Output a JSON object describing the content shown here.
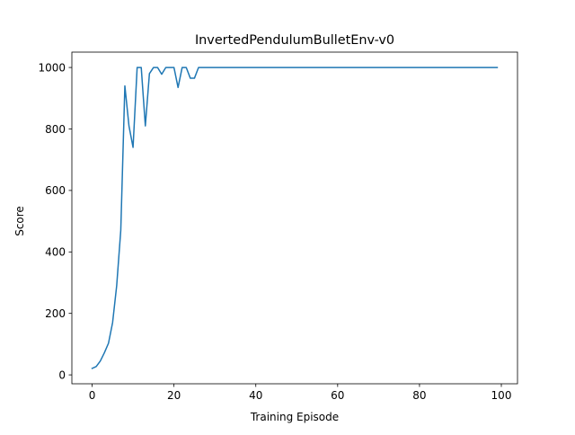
{
  "chart_data": {
    "type": "line",
    "title": "InvertedPendulumBulletEnv-v0",
    "xlabel": "Training Episode",
    "ylabel": "Score",
    "xlim": [
      -4.95,
      103.95
    ],
    "ylim": [
      -28.95,
      1049.95
    ],
    "xticks": [
      0,
      20,
      40,
      60,
      80,
      100
    ],
    "yticks": [
      0,
      200,
      400,
      600,
      800,
      1000
    ],
    "grid": false,
    "line_color": "#1f77b4",
    "series": [
      {
        "x": [
          0,
          1,
          2,
          3,
          4,
          5,
          6,
          7,
          8,
          9,
          10,
          11,
          12,
          13,
          14,
          15,
          16,
          17,
          18,
          19,
          20,
          21,
          22,
          23,
          24,
          25,
          26,
          27,
          28,
          29,
          30,
          31,
          32,
          33,
          34,
          35,
          36,
          37,
          38,
          39,
          40,
          41,
          42,
          43,
          44,
          45,
          46,
          47,
          48,
          49,
          50,
          51,
          52,
          53,
          54,
          55,
          56,
          57,
          58,
          59,
          60,
          61,
          62,
          63,
          64,
          65,
          66,
          67,
          68,
          69,
          70,
          71,
          72,
          73,
          74,
          75,
          76,
          77,
          78,
          79,
          80,
          81,
          82,
          83,
          84,
          85,
          86,
          87,
          88,
          89,
          90,
          91,
          92,
          93,
          94,
          95,
          96,
          97,
          98,
          99
        ],
        "values": [
          21,
          27,
          45,
          72,
          103,
          170,
          290,
          470,
          940,
          810,
          740,
          1000,
          1000,
          810,
          980,
          1000,
          1000,
          978,
          1000,
          1000,
          1000,
          935,
          1000,
          1000,
          965,
          965,
          1000,
          1000,
          1000,
          1000,
          1000,
          1000,
          1000,
          1000,
          1000,
          1000,
          1000,
          1000,
          1000,
          1000,
          1000,
          1000,
          1000,
          1000,
          1000,
          1000,
          1000,
          1000,
          1000,
          1000,
          1000,
          1000,
          1000,
          1000,
          1000,
          1000,
          1000,
          1000,
          1000,
          1000,
          1000,
          1000,
          1000,
          1000,
          1000,
          1000,
          1000,
          1000,
          1000,
          1000,
          1000,
          1000,
          1000,
          1000,
          1000,
          1000,
          1000,
          1000,
          1000,
          1000,
          1000,
          1000,
          1000,
          1000,
          1000,
          1000,
          1000,
          1000,
          1000,
          1000,
          1000,
          1000,
          1000,
          1000,
          1000,
          1000,
          1000,
          1000,
          1000,
          1000
        ]
      }
    ]
  }
}
